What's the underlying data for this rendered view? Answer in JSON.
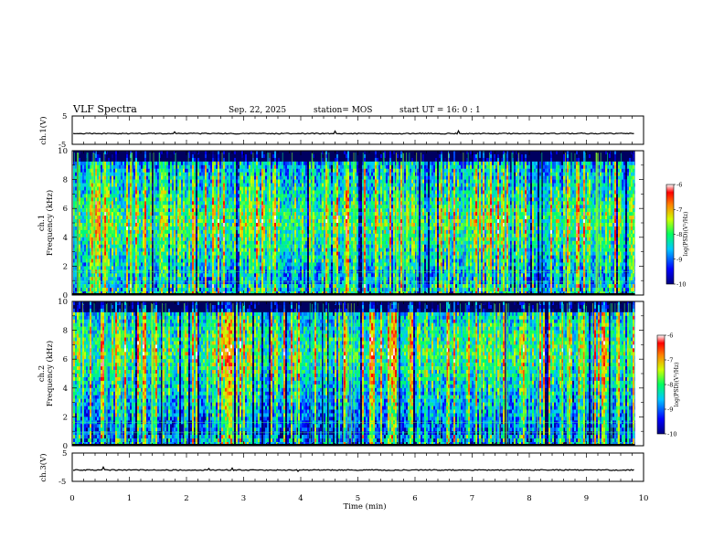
{
  "header": {
    "title": "VLF Spectra",
    "date": "Sep. 22, 2025",
    "station": "station= MOS",
    "start": "start  UT =   16: 0  : 1"
  },
  "colors": {
    "spectrum_low": "#000060",
    "spectrum_high": "#ff0000",
    "trace": "#000000"
  },
  "chart_data": [
    {
      "type": "line",
      "panel": "ch1-waveform",
      "ylabel": "ch.1(V)",
      "ylim": [
        -5,
        5
      ],
      "yticks": [
        "5",
        "-5"
      ],
      "xlim": [
        0,
        10
      ],
      "level": -1.2
    },
    {
      "type": "heatmap",
      "panel": "ch1-spectrogram",
      "ylabel_top": "ch.1",
      "ylabel": "Frequency (kHz)",
      "ylim": [
        0,
        10
      ],
      "yticks": [
        "0",
        "2",
        "4",
        "6",
        "8",
        "10"
      ],
      "xlim": [
        0,
        9.85
      ],
      "band_center_khz": 5.0,
      "colorbar": {
        "label": "log(PSD)(V²/Hz)",
        "ticks": [
          "-6",
          "-7",
          "-8",
          "-9",
          "-10"
        ],
        "range": [
          -10,
          -6
        ]
      }
    },
    {
      "type": "heatmap",
      "panel": "ch2-spectrogram",
      "ylabel_top": "ch.2",
      "ylabel": "Frequency (kHz)",
      "ylim": [
        0,
        10
      ],
      "yticks": [
        "0",
        "2",
        "4",
        "6",
        "8",
        "10"
      ],
      "xlim": [
        0,
        9.85
      ],
      "band_center_khz": 6.5,
      "colorbar": {
        "label": "log(PSD)(V²/Hz)",
        "ticks": [
          "-6",
          "-7",
          "-8",
          "-9",
          "-10"
        ],
        "range": [
          -10,
          -6
        ]
      }
    },
    {
      "type": "line",
      "panel": "ch3-waveform",
      "ylabel": "ch.3(V)",
      "ylim": [
        -5,
        5
      ],
      "yticks": [
        "5",
        "-5"
      ],
      "xlim": [
        0,
        10
      ],
      "level": -1.0
    }
  ],
  "xaxis": {
    "label": "Time  (min)",
    "ticks": [
      "0",
      "1",
      "2",
      "3",
      "4",
      "5",
      "6",
      "7",
      "8",
      "9",
      "10"
    ],
    "range": [
      0,
      10
    ]
  }
}
